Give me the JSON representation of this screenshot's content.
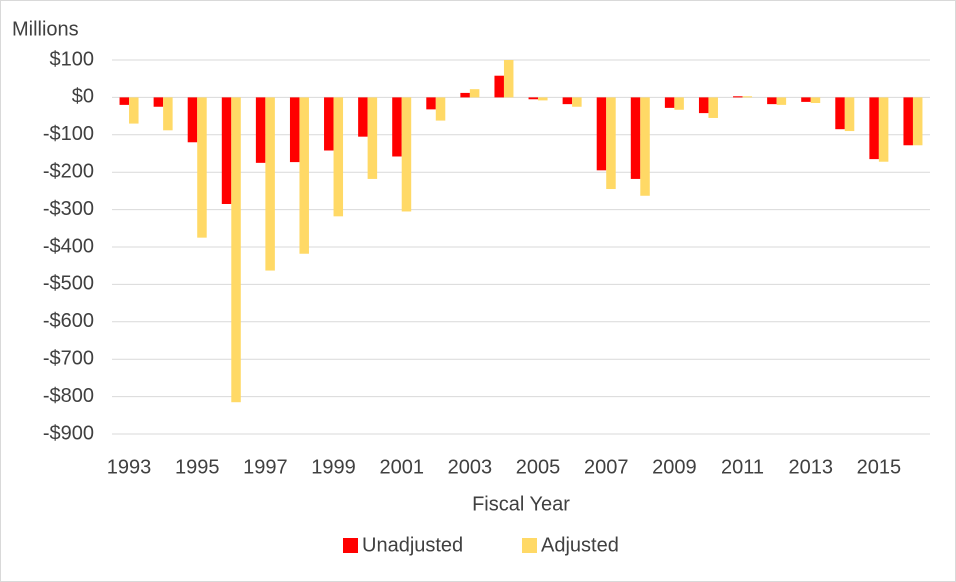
{
  "chart_data": {
    "type": "bar",
    "y_label": "Millions",
    "x_label": "Fiscal Year",
    "categories": [
      "1993",
      null,
      "1995",
      null,
      "1997",
      null,
      "1999",
      null,
      "2001",
      null,
      "2003",
      null,
      "2005",
      null,
      "2007",
      null,
      "2009",
      null,
      "2011",
      null,
      "2013",
      null,
      "2015",
      null
    ],
    "series": [
      {
        "name": "Unadjusted",
        "color": "#ff0000",
        "values": [
          -20,
          -25,
          -120,
          -285,
          -175,
          -173,
          -142,
          -105,
          -158,
          -32,
          12,
          58,
          -5,
          -18,
          -195,
          -218,
          -28,
          -42,
          3,
          -18,
          -12,
          -85,
          -165,
          -128
        ]
      },
      {
        "name": "Adjusted",
        "color": "#ffd966",
        "values": [
          -70,
          -88,
          -375,
          -815,
          -463,
          -418,
          -318,
          -218,
          -305,
          -62,
          22,
          100,
          -8,
          -25,
          -245,
          -263,
          -33,
          -55,
          3,
          -20,
          -15,
          -90,
          -172,
          -128
        ]
      }
    ],
    "ylim": [
      -900,
      100
    ],
    "yticks": [
      {
        "value": 100,
        "label": "$100"
      },
      {
        "value": 0,
        "label": "$0"
      },
      {
        "value": -100,
        "label": "-$100"
      },
      {
        "value": -200,
        "label": "-$200"
      },
      {
        "value": -300,
        "label": "-$300"
      },
      {
        "value": -400,
        "label": "-$400"
      },
      {
        "value": -500,
        "label": "-$500"
      },
      {
        "value": -600,
        "label": "-$600"
      },
      {
        "value": -700,
        "label": "-$700"
      },
      {
        "value": -800,
        "label": "-$800"
      },
      {
        "value": -900,
        "label": "-$900"
      }
    ],
    "grid": true
  }
}
